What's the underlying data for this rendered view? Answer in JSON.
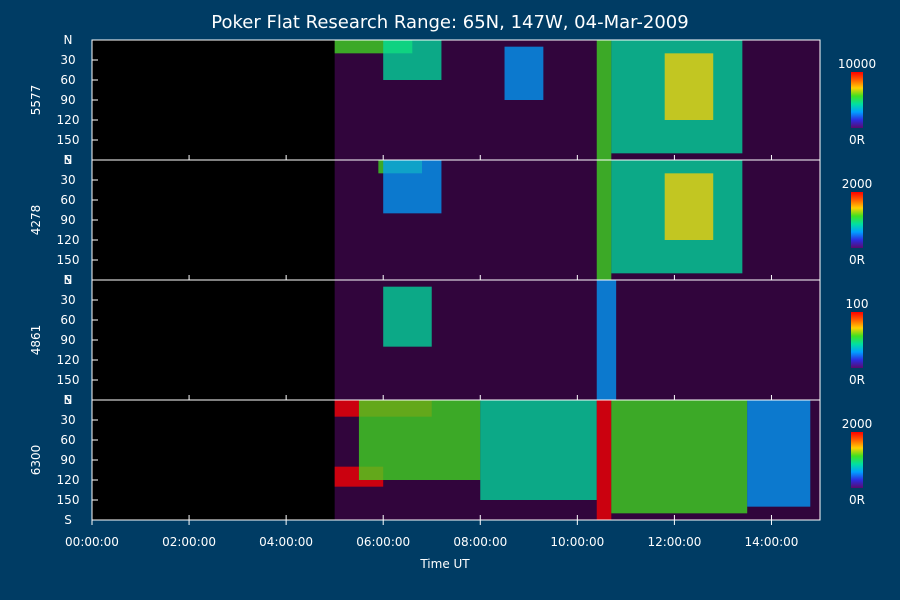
{
  "colors": {
    "background": "#003c64",
    "frame": "#ffffff",
    "no_data": "#000000",
    "colorbar": [
      "#5a0a6e",
      "#2c2ce0",
      "#00a0ff",
      "#00e0a0",
      "#40e020",
      "#ffd000",
      "#ff6000",
      "#ff0000"
    ]
  },
  "chart_data": {
    "type": "heatmap",
    "title": "Poker Flat Research Range: 65N, 147W, 04-Mar-2009",
    "xlabel": "Time UT",
    "x_range_hours": [
      0,
      15
    ],
    "x_ticks": [
      {
        "hour": 0,
        "label": "00:00:00"
      },
      {
        "hour": 2,
        "label": "02:00:00"
      },
      {
        "hour": 4,
        "label": "04:00:00"
      },
      {
        "hour": 6,
        "label": "06:00:00"
      },
      {
        "hour": 8,
        "label": "08:00:00"
      },
      {
        "hour": 10,
        "label": "10:00:00"
      },
      {
        "hour": 12,
        "label": "12:00:00"
      },
      {
        "hour": 14,
        "label": "14:00:00"
      }
    ],
    "y_range": [
      0,
      180
    ],
    "y_ticks": [
      {
        "value": 0,
        "label": "N"
      },
      {
        "value": 30,
        "label": "30"
      },
      {
        "value": 60,
        "label": "60"
      },
      {
        "value": 90,
        "label": "90"
      },
      {
        "value": 120,
        "label": "120"
      },
      {
        "value": 150,
        "label": "150"
      },
      {
        "value": 180,
        "label": "S"
      }
    ],
    "data_start_hour": 5.0,
    "data_end_hour": 15.0,
    "panels": [
      {
        "label": "5577",
        "colorbar_max": "10000",
        "colorbar_min": "0R",
        "features": [
          {
            "t0": 5.0,
            "t1": 6.6,
            "y0": 0,
            "y1": 20,
            "intensity": 0.55
          },
          {
            "t0": 6.0,
            "t1": 7.2,
            "y0": 0,
            "y1": 60,
            "intensity": 0.45
          },
          {
            "t0": 8.5,
            "t1": 9.3,
            "y0": 10,
            "y1": 90,
            "intensity": 0.35
          },
          {
            "t0": 10.4,
            "t1": 10.7,
            "y0": 0,
            "y1": 180,
            "intensity": 0.55
          },
          {
            "t0": 10.7,
            "t1": 13.4,
            "y0": 0,
            "y1": 170,
            "intensity": 0.45
          },
          {
            "t0": 11.8,
            "t1": 12.8,
            "y0": 20,
            "y1": 120,
            "intensity": 0.7
          }
        ]
      },
      {
        "label": "4278",
        "colorbar_max": "2000",
        "colorbar_min": "0R",
        "features": [
          {
            "t0": 5.9,
            "t1": 6.8,
            "y0": 0,
            "y1": 20,
            "intensity": 0.55
          },
          {
            "t0": 6.0,
            "t1": 7.2,
            "y0": 0,
            "y1": 80,
            "intensity": 0.35
          },
          {
            "t0": 10.4,
            "t1": 10.7,
            "y0": 0,
            "y1": 180,
            "intensity": 0.55
          },
          {
            "t0": 10.7,
            "t1": 13.4,
            "y0": 0,
            "y1": 170,
            "intensity": 0.45
          },
          {
            "t0": 11.8,
            "t1": 12.8,
            "y0": 20,
            "y1": 120,
            "intensity": 0.7
          }
        ]
      },
      {
        "label": "4861",
        "colorbar_max": "100",
        "colorbar_min": "0R",
        "features": [
          {
            "t0": 6.0,
            "t1": 7.0,
            "y0": 10,
            "y1": 100,
            "intensity": 0.4
          },
          {
            "t0": 10.4,
            "t1": 10.8,
            "y0": 0,
            "y1": 180,
            "intensity": 0.35
          }
        ]
      },
      {
        "label": "6300",
        "colorbar_max": "2000",
        "colorbar_min": "0R",
        "features": [
          {
            "t0": 5.0,
            "t1": 7.0,
            "y0": 0,
            "y1": 25,
            "intensity": 0.95
          },
          {
            "t0": 5.0,
            "t1": 6.0,
            "y0": 100,
            "y1": 130,
            "intensity": 0.95
          },
          {
            "t0": 5.5,
            "t1": 8.0,
            "y0": 0,
            "y1": 120,
            "intensity": 0.6
          },
          {
            "t0": 8.0,
            "t1": 10.4,
            "y0": 0,
            "y1": 150,
            "intensity": 0.45
          },
          {
            "t0": 10.4,
            "t1": 10.7,
            "y0": 0,
            "y1": 180,
            "intensity": 0.95
          },
          {
            "t0": 10.7,
            "t1": 13.5,
            "y0": 0,
            "y1": 170,
            "intensity": 0.55
          },
          {
            "t0": 13.5,
            "t1": 14.8,
            "y0": 0,
            "y1": 160,
            "intensity": 0.25
          }
        ]
      }
    ]
  }
}
